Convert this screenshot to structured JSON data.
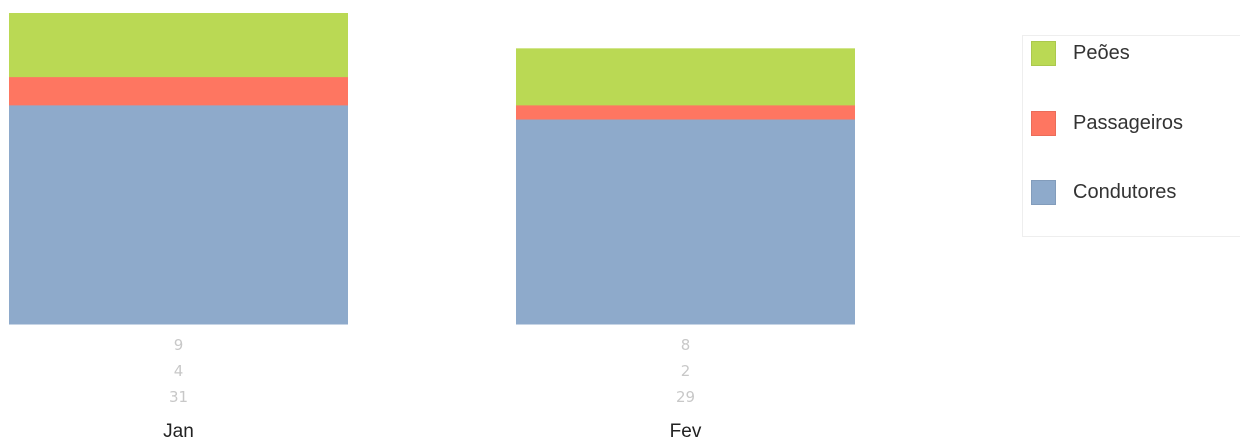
{
  "chart_data": {
    "type": "bar",
    "stacked": true,
    "normalized": true,
    "categories": [
      "Jan",
      "Fev"
    ],
    "series": [
      {
        "name": "Condutores",
        "color": "#8eaacb",
        "values": [
          31,
          29
        ]
      },
      {
        "name": "Passageiros",
        "color": "#fe7661",
        "values": [
          4,
          2
        ]
      },
      {
        "name": "Peões",
        "color": "#bad954",
        "values": [
          9,
          8
        ]
      }
    ],
    "value_label_order": [
      "Peões",
      "Passageiros",
      "Condutores"
    ],
    "legend": {
      "placement": "right",
      "items": [
        "Peões",
        "Passageiros",
        "Condutores"
      ]
    },
    "title": "",
    "xlabel": "",
    "ylabel": "",
    "grid": false,
    "label_color": "#c8c8c8"
  }
}
